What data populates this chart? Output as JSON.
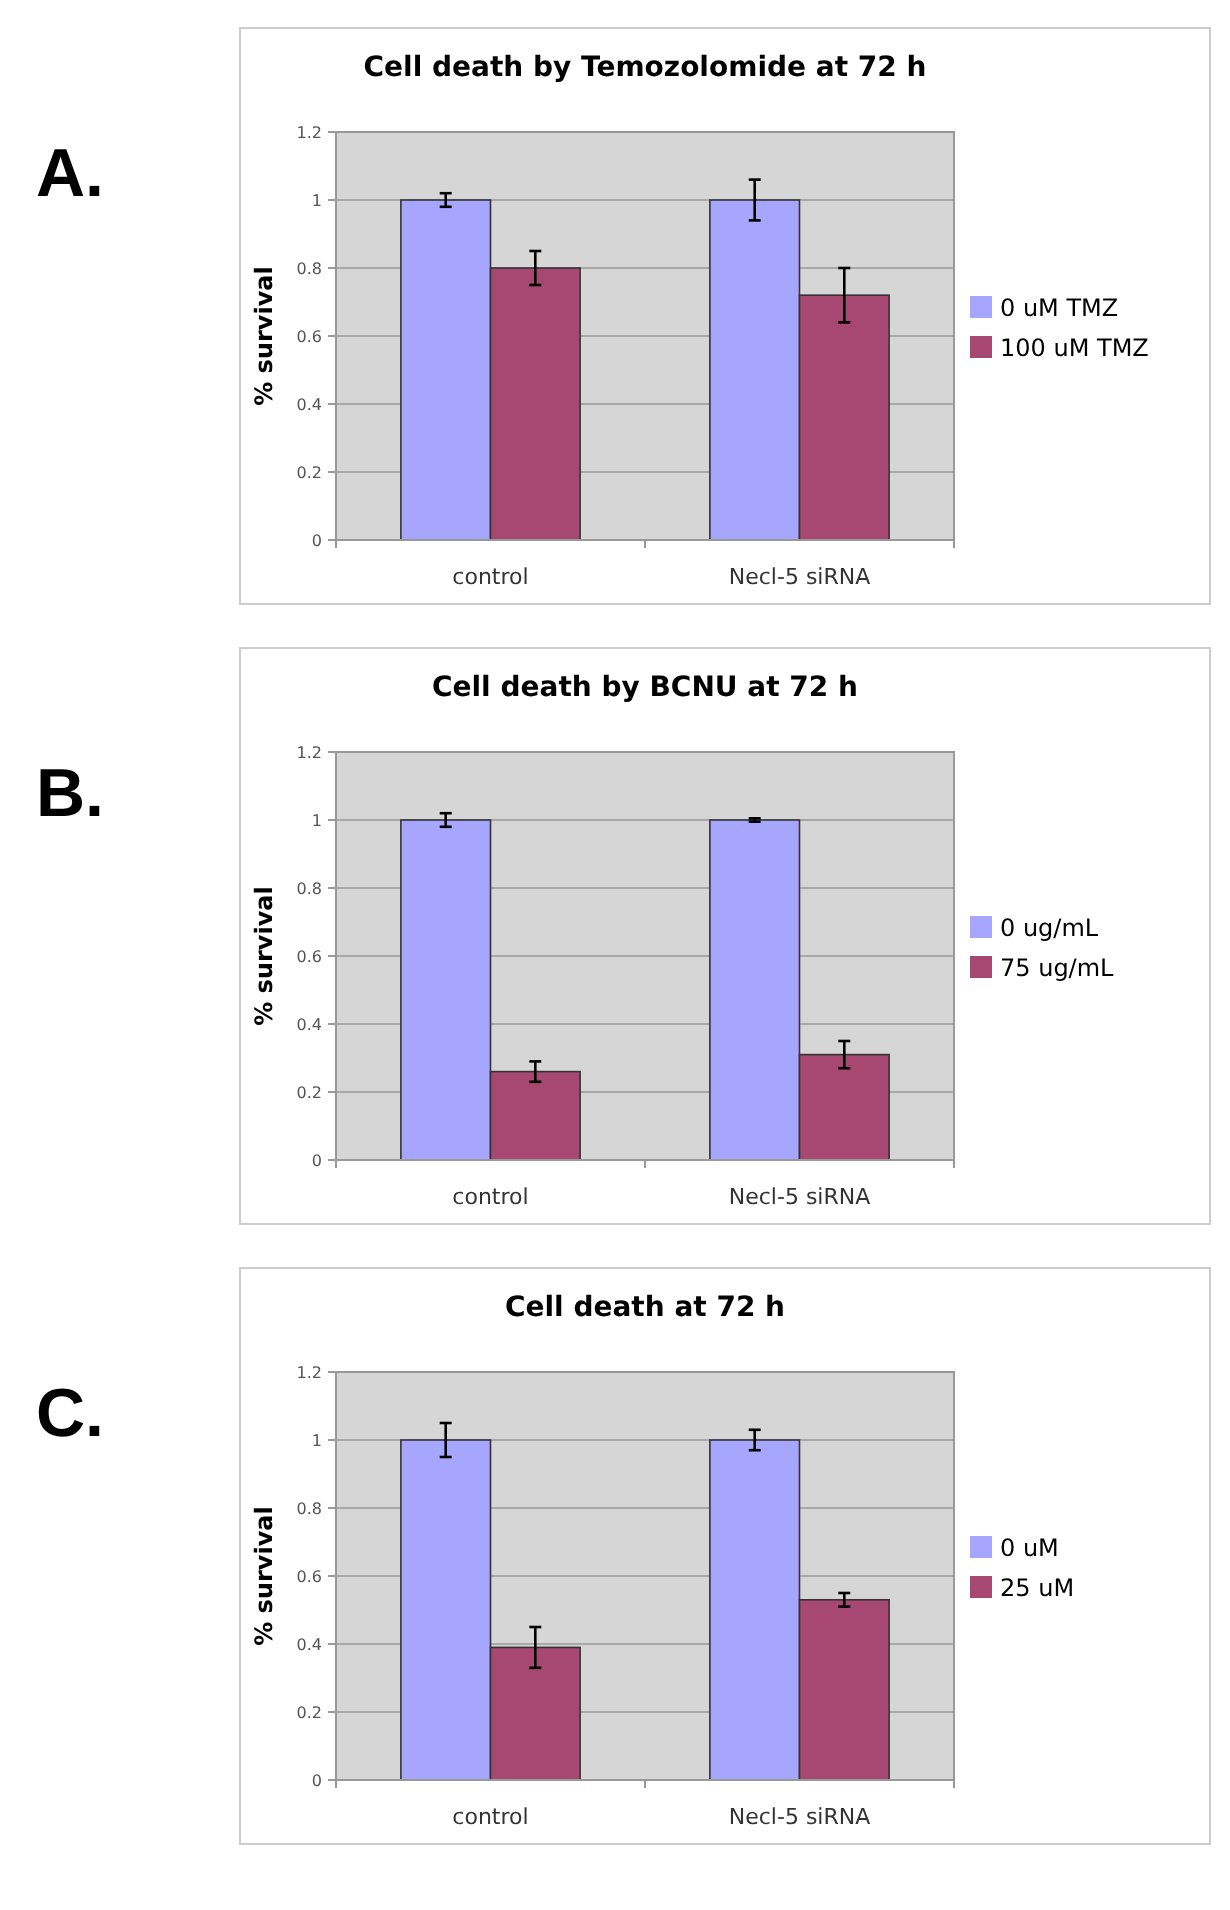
{
  "chart_data": [
    {
      "type": "bar",
      "title": "Cell death by Temozolomide at 72 h",
      "ylabel": "% survival",
      "annotations": [
        "A."
      ],
      "categories": [
        "control",
        "Necl-5 siRNA"
      ],
      "series": [
        {
          "name": "0 uM TMZ",
          "color": "#a6a6ff",
          "values": [
            1.0,
            1.0
          ],
          "errors": [
            0.02,
            0.06
          ]
        },
        {
          "name": "100 uM TMZ",
          "color": "#a64872",
          "values": [
            0.8,
            0.72
          ],
          "errors": [
            0.05,
            0.08
          ]
        }
      ],
      "ylim": [
        0,
        1.2
      ],
      "yticks": [
        0,
        0.2,
        0.4,
        0.6,
        0.8,
        1,
        1.2
      ],
      "grid": "y",
      "legend": "right"
    },
    {
      "type": "bar",
      "title": "Cell death by BCNU at 72 h",
      "ylabel": "% survival",
      "annotations": [
        "B."
      ],
      "categories": [
        "control",
        "Necl-5 siRNA"
      ],
      "series": [
        {
          "name": "0 ug/mL",
          "color": "#a6a6ff",
          "values": [
            1.0,
            1.0
          ],
          "errors": [
            0.02,
            0.005
          ]
        },
        {
          "name": "75 ug/mL",
          "color": "#a64872",
          "values": [
            0.26,
            0.31
          ],
          "errors": [
            0.03,
            0.04
          ]
        }
      ],
      "ylim": [
        0,
        1.2
      ],
      "yticks": [
        0,
        0.2,
        0.4,
        0.6,
        0.8,
        1,
        1.2
      ],
      "grid": "y",
      "legend": "right"
    },
    {
      "type": "bar",
      "title": "Cell death at 72 h",
      "ylabel": "% survival",
      "annotations": [
        "C."
      ],
      "categories": [
        "control",
        "Necl-5 siRNA"
      ],
      "series": [
        {
          "name": "0 uM",
          "color": "#a6a6ff",
          "values": [
            1.0,
            1.0
          ],
          "errors": [
            0.05,
            0.03
          ]
        },
        {
          "name": "25 uM",
          "color": "#a64872",
          "values": [
            0.39,
            0.53
          ],
          "errors": [
            0.06,
            0.02
          ]
        }
      ],
      "ylim": [
        0,
        1.2
      ],
      "yticks": [
        0,
        0.2,
        0.4,
        0.6,
        0.8,
        1,
        1.2
      ],
      "grid": "y",
      "legend": "right"
    }
  ]
}
